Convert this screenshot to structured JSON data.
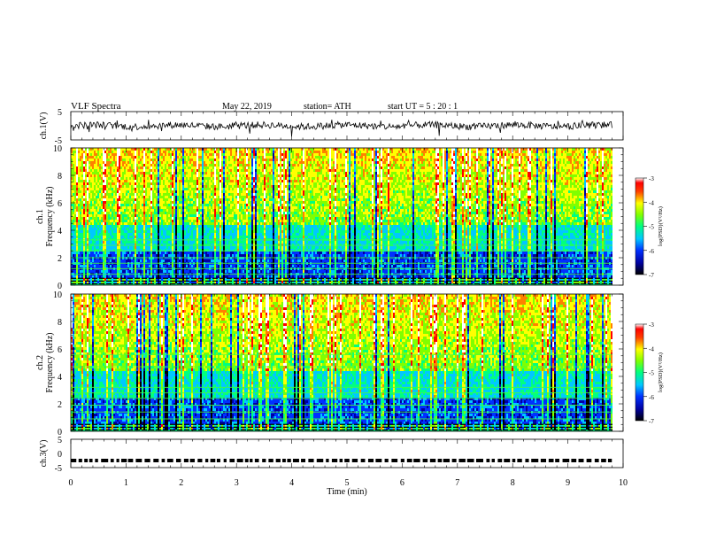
{
  "header": {
    "title": "VLF  Spectra",
    "date": "May 22, 2019",
    "station": "station= ATH",
    "start_ut": "start  UT  =    5  : 20 : 1"
  },
  "chart_data": [
    {
      "type": "line",
      "panel": "ch1-time-series",
      "ylabel": "ch.1(V)",
      "ylim": [
        -5,
        5
      ],
      "yticks": [
        "5",
        "-5"
      ],
      "xlim": [
        0,
        10
      ],
      "note_values": "noisy waveform centered near 0 V with amplitude about ±1.5 V, spikes to about ±3 V"
    },
    {
      "type": "heatmap",
      "panel": "ch1-spectrogram",
      "ylabel_top": "ch.1",
      "ylabel": "Frequency  (kHz)",
      "ylim": [
        0,
        10
      ],
      "yticks": [
        "0",
        "2",
        "4",
        "6",
        "8",
        "10"
      ],
      "xlim": [
        0,
        9.8
      ],
      "colorbar": {
        "label": "log(PSD)(V²/Hz)",
        "range": [
          -7,
          -3
        ],
        "ticks": [
          "-3",
          "-4",
          "-5",
          "-6",
          "-7"
        ]
      }
    },
    {
      "type": "heatmap",
      "panel": "ch2-spectrogram",
      "ylabel_top": "ch.2",
      "ylabel": "Frequency  (kHz)",
      "ylim": [
        0,
        10
      ],
      "yticks": [
        "0",
        "2",
        "4",
        "6",
        "8",
        "10"
      ],
      "xlim": [
        0,
        9.8
      ],
      "colorbar": {
        "label": "log(PSD)(V²/Hz)",
        "range": [
          -7,
          -3
        ],
        "ticks": [
          "-3",
          "-4",
          "-5",
          "-6",
          "-7"
        ]
      }
    },
    {
      "type": "line",
      "panel": "ch3-time-series",
      "ylabel": "ch.3(V)",
      "ylim": [
        -5,
        5
      ],
      "yticks": [
        "5",
        "0",
        "-5"
      ],
      "xlim": [
        0,
        10
      ],
      "note_values": "pulse train near -2.5 V"
    }
  ],
  "xaxis": {
    "label": "Time  (min)",
    "ticks": [
      "0",
      "1",
      "2",
      "3",
      "4",
      "5",
      "6",
      "7",
      "8",
      "9",
      "10"
    ]
  },
  "colors": {
    "colormap": [
      "#000000",
      "#0000a0",
      "#0030ff",
      "#00c8ff",
      "#00ff80",
      "#80ff00",
      "#ffff00",
      "#ff8000",
      "#ff0000",
      "#ffffff"
    ]
  }
}
